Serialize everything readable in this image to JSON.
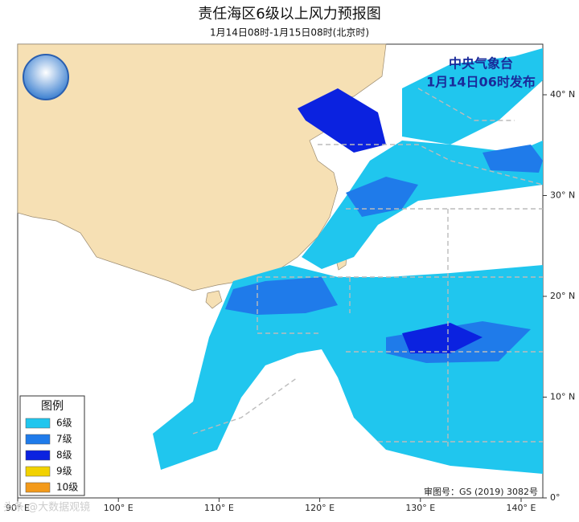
{
  "header": {
    "title": "责任海区6级以上风力预报图",
    "subtitle": "1月14日08时-1月15日08时(北京时)"
  },
  "issuer": {
    "name": "中央气象台",
    "issued": "1月14日06时发布"
  },
  "legend": {
    "title": "图例",
    "items": [
      {
        "label": "6级",
        "color": "#20c6ee"
      },
      {
        "label": "7级",
        "color": "#1f7bea"
      },
      {
        "label": "8级",
        "color": "#0b22e0"
      },
      {
        "label": "9级",
        "color": "#f2d200"
      },
      {
        "label": "10级",
        "color": "#f39a1a"
      }
    ]
  },
  "axes": {
    "longitude": [
      "90° E",
      "100° E",
      "110° E",
      "120° E",
      "130° E",
      "140° E"
    ],
    "latitude": [
      "40° N",
      "30° N",
      "20° N",
      "10° N",
      "0°"
    ]
  },
  "footer": {
    "approval": "审图号：GS (2019) 3082号",
    "watermark": "头条 @大数据观镜"
  }
}
